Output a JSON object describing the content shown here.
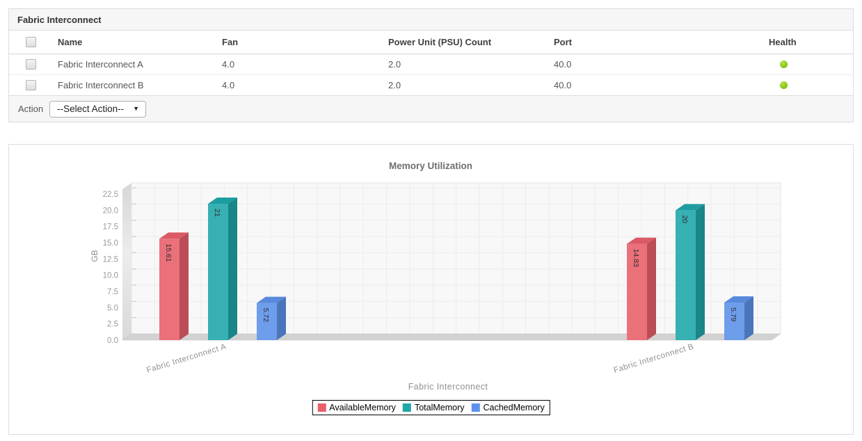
{
  "table": {
    "title": "Fabric Interconnect",
    "header": {
      "name": "Name",
      "fan": "Fan",
      "psu": "Power Unit (PSU) Count",
      "port": "Port",
      "health": "Health"
    },
    "rows": [
      {
        "name": "Fabric Interconnect A",
        "fan": "4.0",
        "psu": "2.0",
        "port": "40.0",
        "health_status": "healthy"
      },
      {
        "name": "Fabric Interconnect B",
        "fan": "4.0",
        "psu": "2.0",
        "port": "40.0",
        "health_status": "healthy"
      }
    ],
    "footer": {
      "action_label": "Action",
      "select_value": "--Select Action--"
    },
    "health_dot_color": "#7dbf10"
  },
  "chart_data": {
    "type": "bar",
    "style": "3d-column",
    "title": "Memory Utilization",
    "xlabel": "Fabric Interconnect",
    "ylabel": "GB",
    "categories": [
      "Fabric Interconnect A",
      "Fabric Interconnect B"
    ],
    "series": [
      {
        "name": "AvailableMemory",
        "color": "#e8606b",
        "values": [
          15.61,
          14.83
        ]
      },
      {
        "name": "TotalMemory",
        "color": "#20a7aa",
        "values": [
          21,
          20
        ]
      },
      {
        "name": "CachedMemory",
        "color": "#5e92ea",
        "values": [
          5.72,
          5.79
        ]
      }
    ],
    "ylim": [
      0,
      24
    ],
    "ytick_step": 2.5,
    "yticks": [
      "0.0",
      "2.5",
      "5.0",
      "7.5",
      "10.0",
      "12.5",
      "15.0",
      "17.5",
      "20.0",
      "22.5"
    ],
    "grid": true,
    "value_labels": true,
    "legend_position": "bottom",
    "legend_border_color": "#000000"
  }
}
